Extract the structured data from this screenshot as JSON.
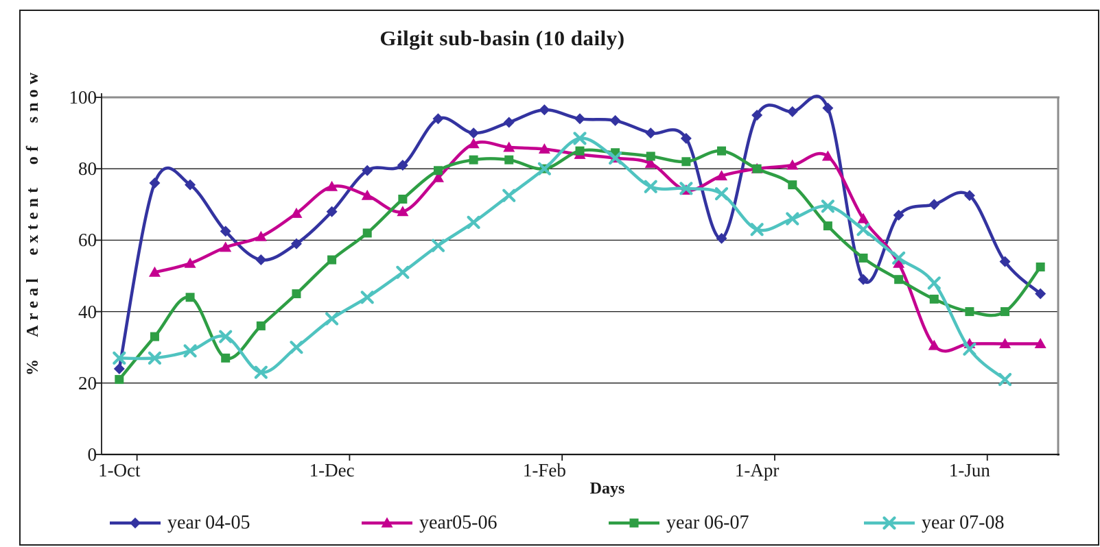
{
  "chart_data": {
    "type": "line",
    "title": "Gilgit sub-basin (10 daily)",
    "xlabel": "Days",
    "ylabel": "% Areal extent of snow",
    "n_points": 27,
    "x_tick_labels": [
      "1-Oct",
      "1-Dec",
      "1-Feb",
      "1-Apr",
      "1-Jun"
    ],
    "x_tick_indices": [
      0,
      6,
      12,
      18,
      24
    ],
    "y_ticks": [
      0,
      20,
      40,
      60,
      80,
      100
    ],
    "ylim": [
      0,
      100
    ],
    "grid": "horizontal",
    "grid_color": "#1a1a1a",
    "frame_color": "#8c8c8c",
    "axis_color": "#1a1a1a",
    "line_smoothing": true,
    "legend_position": "bottom",
    "series": [
      {
        "name": "year 04-05",
        "color": "#3333A0",
        "marker": "diamond",
        "values": [
          24,
          76,
          75.5,
          62.5,
          54.5,
          59,
          68,
          79.5,
          81,
          94,
          90,
          93,
          96.5,
          94,
          93.5,
          90,
          88.5,
          60.5,
          95,
          96,
          97,
          49,
          67,
          70,
          72.5,
          54,
          45
        ]
      },
      {
        "name": "year05-06",
        "color": "#C4008F",
        "marker": "triangle",
        "values": [
          null,
          51,
          53.5,
          58,
          61,
          67.5,
          75,
          72.5,
          68,
          77.5,
          87,
          86,
          85.5,
          84,
          83,
          81.5,
          74,
          78,
          80,
          81,
          83.5,
          66,
          53.5,
          30.5,
          31,
          31,
          31
        ]
      },
      {
        "name": "year 06-07",
        "color": "#2E9E44",
        "marker": "square",
        "values": [
          21,
          33,
          44,
          27,
          36,
          45,
          54.5,
          62,
          71.5,
          79.5,
          82.5,
          82.5,
          80,
          85,
          84.5,
          83.5,
          82,
          85,
          80,
          75.5,
          64,
          55,
          49,
          43.5,
          40,
          40,
          52.5
        ]
      },
      {
        "name": "year 07-08",
        "color": "#4FC3C0",
        "marker": "x",
        "values": [
          27,
          27,
          29,
          33,
          23,
          30,
          38,
          44,
          51,
          58.5,
          65,
          72.5,
          80,
          88.5,
          83,
          75,
          74.5,
          73,
          63,
          66,
          69.5,
          63,
          55,
          48,
          29.5,
          21,
          null
        ]
      }
    ]
  }
}
